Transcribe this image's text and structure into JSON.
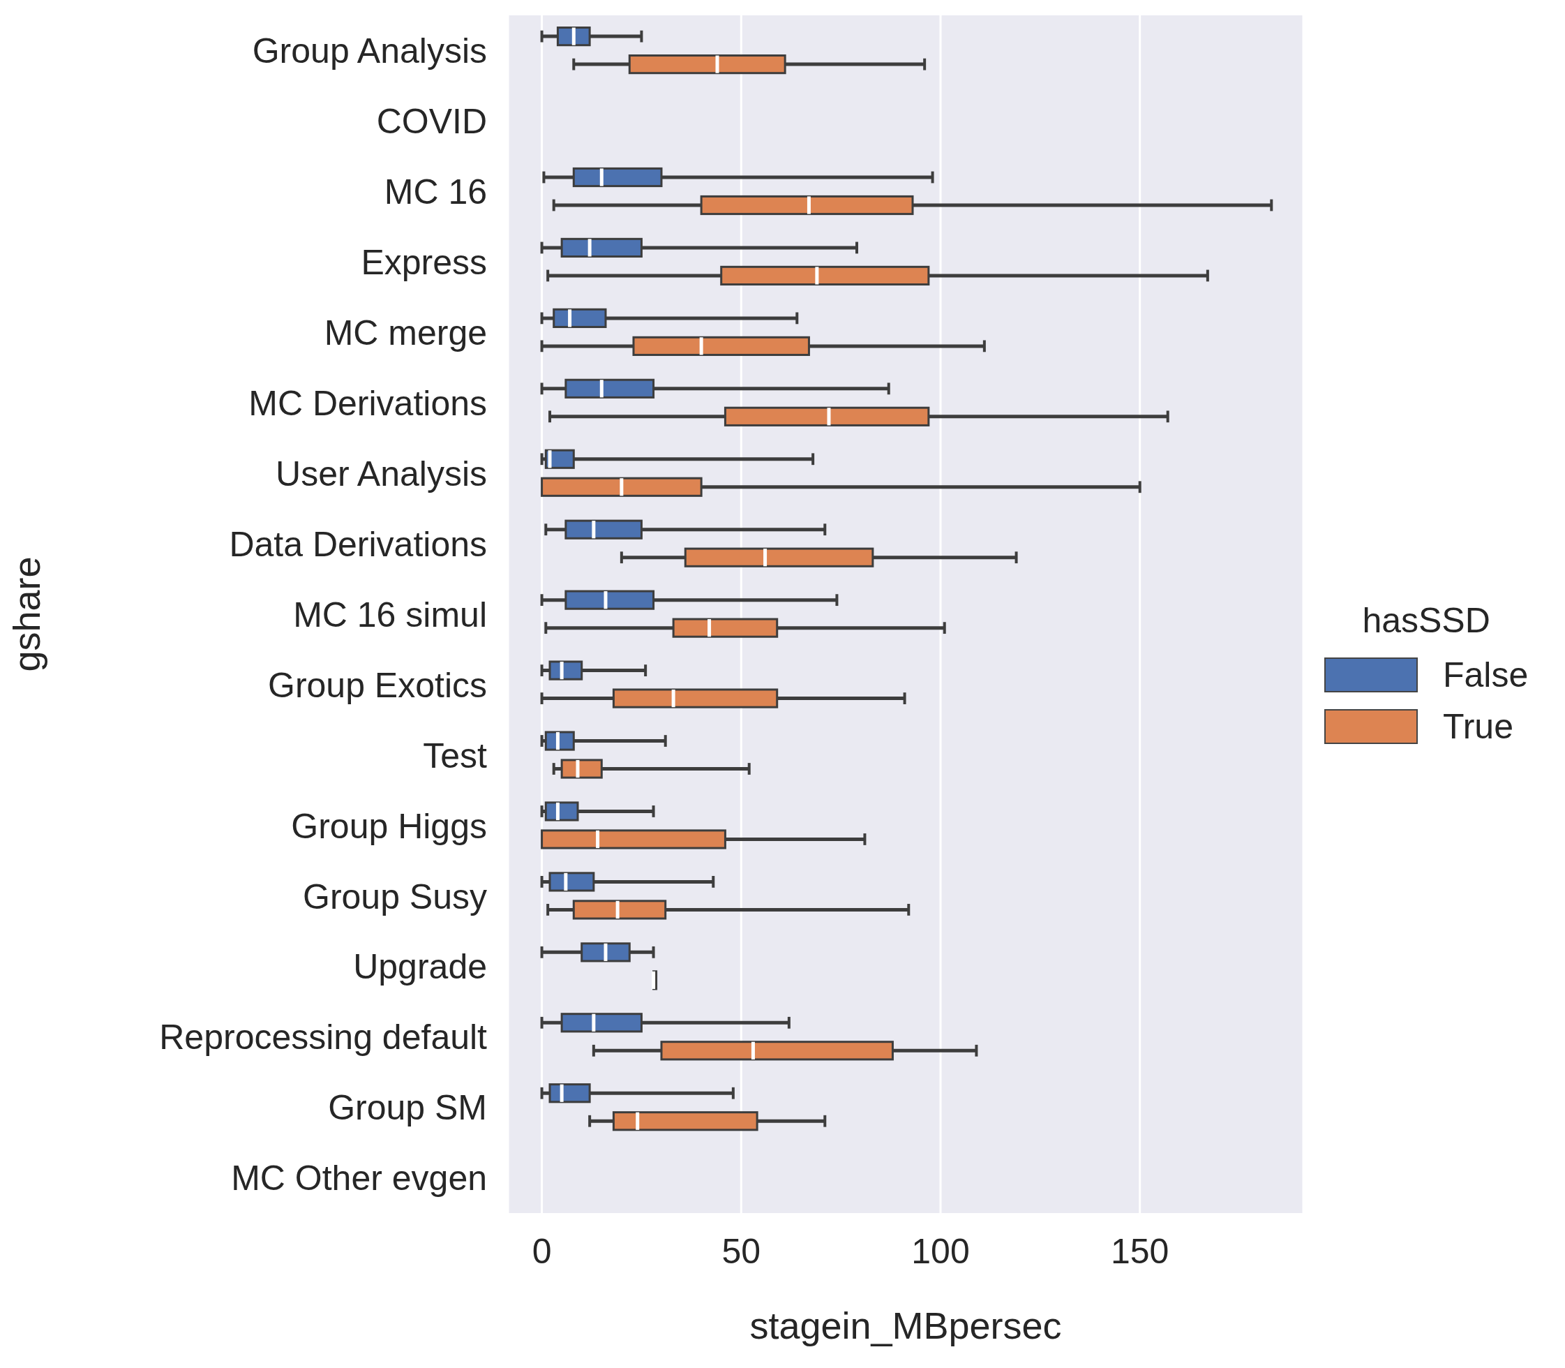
{
  "chart_data": {
    "type": "box",
    "orientation": "horizontal",
    "xlabel": "stagein_MBpersec",
    "ylabel": "gshare",
    "legend_title": "hasSSD",
    "legend": "right",
    "grid": "x",
    "categories": [
      "Group Analysis",
      "COVID",
      "MC 16",
      "Express",
      "MC merge",
      "MC Derivations",
      "User Analysis",
      "Data Derivations",
      "MC 16 simul",
      "Group Exotics",
      "Test",
      "Group Higgs",
      "Group Susy",
      "Upgrade",
      "Reprocessing default",
      "Group SM",
      "MC Other evgen"
    ],
    "xlim": [
      -8.5,
      191
    ],
    "xticks": [
      0,
      50,
      100,
      150
    ],
    "series": [
      {
        "name": "False",
        "color": "#4c72b0",
        "boxes": [
          {
            "low": 0,
            "q1": 4,
            "median": 8,
            "q3": 12,
            "high": 25
          },
          null,
          {
            "low": 0.5,
            "q1": 8,
            "median": 15,
            "q3": 30,
            "high": 98
          },
          {
            "low": 0,
            "q1": 5,
            "median": 12,
            "q3": 25,
            "high": 79
          },
          {
            "low": 0,
            "q1": 3,
            "median": 7,
            "q3": 16,
            "high": 64
          },
          {
            "low": 0,
            "q1": 6,
            "median": 15,
            "q3": 28,
            "high": 87
          },
          {
            "low": 0,
            "q1": 1,
            "median": 2,
            "q3": 8,
            "high": 68
          },
          {
            "low": 1,
            "q1": 6,
            "median": 13,
            "q3": 25,
            "high": 71
          },
          {
            "low": 0,
            "q1": 6,
            "median": 16,
            "q3": 28,
            "high": 74
          },
          {
            "low": 0,
            "q1": 2,
            "median": 5,
            "q3": 10,
            "high": 26
          },
          {
            "low": 0,
            "q1": 1,
            "median": 4,
            "q3": 8,
            "high": 31
          },
          {
            "low": 0,
            "q1": 1,
            "median": 4,
            "q3": 9,
            "high": 28
          },
          {
            "low": 0,
            "q1": 2,
            "median": 6,
            "q3": 13,
            "high": 43
          },
          {
            "low": 0,
            "q1": 10,
            "median": 16,
            "q3": 22,
            "high": 28
          },
          {
            "low": 0,
            "q1": 5,
            "median": 13,
            "q3": 25,
            "high": 62
          },
          {
            "low": 0,
            "q1": 2,
            "median": 5,
            "q3": 12,
            "high": 48
          },
          null
        ]
      },
      {
        "name": "True",
        "color": "#dd8452",
        "boxes": [
          {
            "low": 8,
            "q1": 22,
            "median": 44,
            "q3": 61,
            "high": 96
          },
          null,
          {
            "low": 3,
            "q1": 40,
            "median": 67,
            "q3": 93,
            "high": 183
          },
          {
            "low": 1.5,
            "q1": 45,
            "median": 69,
            "q3": 97,
            "high": 167
          },
          {
            "low": 0,
            "q1": 23,
            "median": 40,
            "q3": 67,
            "high": 111
          },
          {
            "low": 2,
            "q1": 46,
            "median": 72,
            "q3": 97,
            "high": 157
          },
          {
            "low": 0,
            "q1": 0,
            "median": 20,
            "q3": 40,
            "high": 150
          },
          {
            "low": 20,
            "q1": 36,
            "median": 56,
            "q3": 83,
            "high": 119
          },
          {
            "low": 1,
            "q1": 33,
            "median": 42,
            "q3": 59,
            "high": 101
          },
          {
            "low": 0,
            "q1": 18,
            "median": 33,
            "q3": 59,
            "high": 91
          },
          {
            "low": 3,
            "q1": 5,
            "median": 9,
            "q3": 15,
            "high": 52
          },
          {
            "low": 0,
            "q1": 0,
            "median": 14,
            "q3": 46,
            "high": 81
          },
          {
            "low": 1.5,
            "q1": 8,
            "median": 19,
            "q3": 31,
            "high": 92
          },
          {
            "low": 28,
            "q1": 28,
            "median": 28,
            "q3": 28,
            "high": 28
          },
          {
            "low": 13,
            "q1": 30,
            "median": 53,
            "q3": 88,
            "high": 109
          },
          {
            "low": 12,
            "q1": 18,
            "median": 24,
            "q3": 54,
            "high": 71
          },
          null
        ]
      }
    ]
  }
}
